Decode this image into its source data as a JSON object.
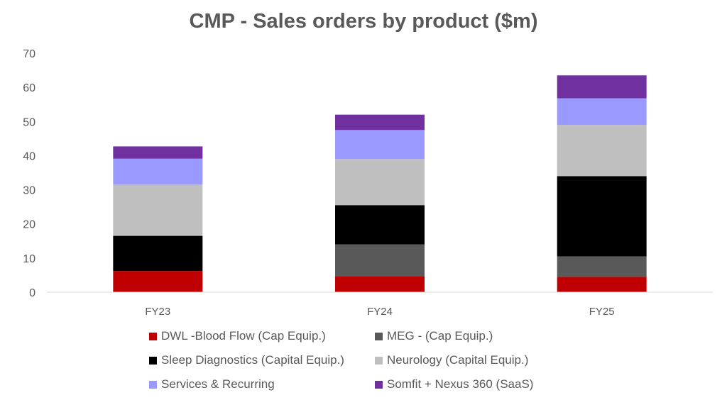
{
  "chart_data": {
    "type": "bar",
    "stacked": true,
    "title": "CMP - Sales orders by product ($m)",
    "xlabel": "",
    "ylabel": "",
    "ylim": [
      0,
      70
    ],
    "yticks": [
      0,
      10,
      20,
      30,
      40,
      50,
      60,
      70
    ],
    "grid": false,
    "legend_position": "bottom",
    "categories": [
      "FY23",
      "FY24",
      "FY25"
    ],
    "series": [
      {
        "name": "DWL  -Blood Flow (Cap Equip.)",
        "color": "#C00000",
        "values": [
          6.2,
          4.7,
          4.5
        ]
      },
      {
        "name": "MEG -  (Cap Equip.)",
        "color": "#595959",
        "values": [
          0,
          9.3,
          6.0
        ]
      },
      {
        "name": "Sleep Diagnostics (Capital Equip.)",
        "color": "#000000",
        "values": [
          10.3,
          11.5,
          23.5
        ]
      },
      {
        "name": "Neurology (Capital Equip.)",
        "color": "#BFBFBF",
        "values": [
          15.0,
          13.5,
          15.0
        ]
      },
      {
        "name": "Services & Recurring",
        "color": "#9999FF",
        "values": [
          7.6,
          8.5,
          7.8
        ]
      },
      {
        "name": "Somfit + Nexus 360 (SaaS)",
        "color": "#7030A0",
        "values": [
          3.6,
          4.5,
          6.7
        ]
      }
    ]
  }
}
